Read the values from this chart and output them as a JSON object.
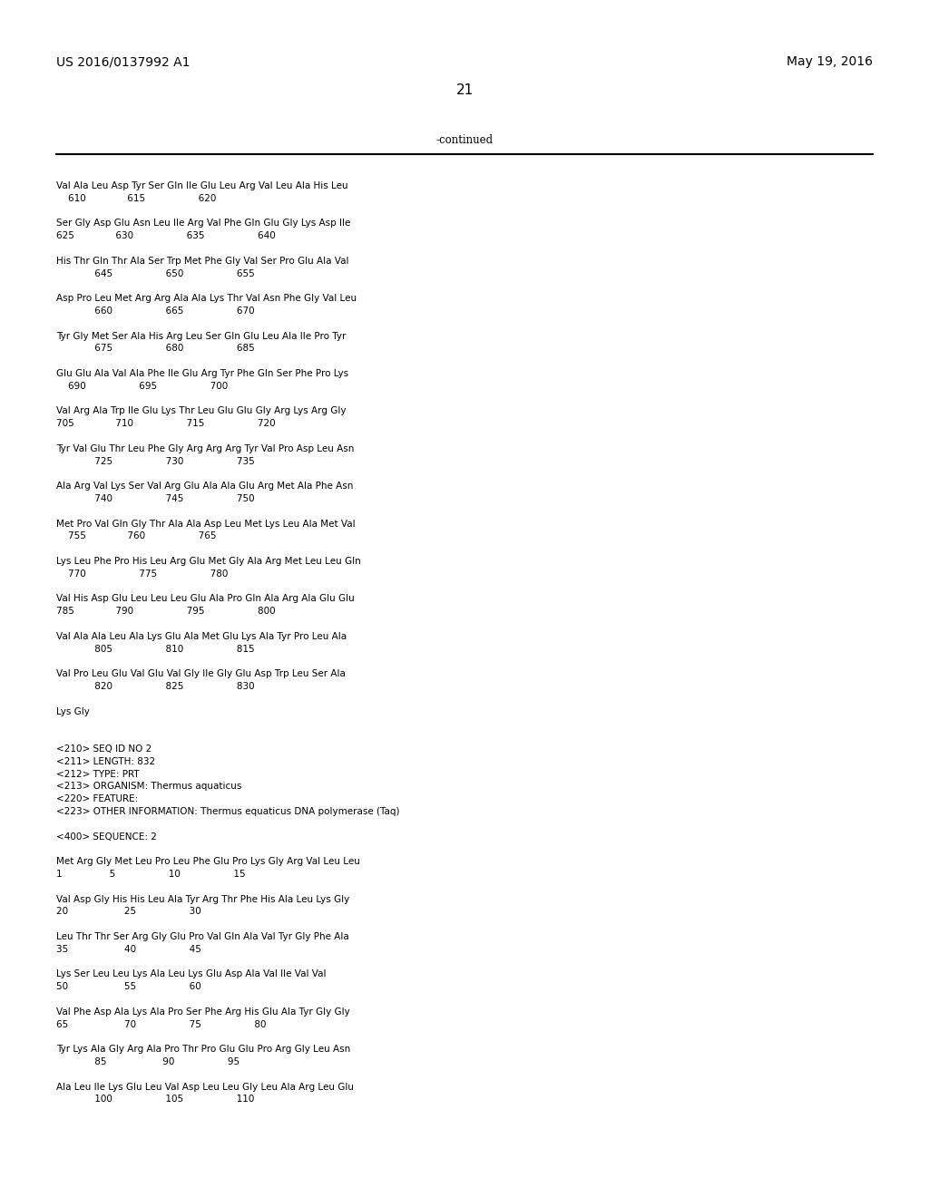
{
  "header_left": "US 2016/0137992 A1",
  "header_right": "May 19, 2016",
  "page_number": "21",
  "continued_text": "-continued",
  "background_color": "#ffffff",
  "text_color": "#000000",
  "content_lines": [
    "Val Ala Leu Asp Tyr Ser Gln Ile Glu Leu Arg Val Leu Ala His Leu",
    "    610              615                  620",
    "",
    "Ser Gly Asp Glu Asn Leu Ile Arg Val Phe Gln Glu Gly Lys Asp Ile",
    "625              630                  635                  640",
    "",
    "His Thr Gln Thr Ala Ser Trp Met Phe Gly Val Ser Pro Glu Ala Val",
    "             645                  650                  655",
    "",
    "Asp Pro Leu Met Arg Arg Ala Ala Lys Thr Val Asn Phe Gly Val Leu",
    "             660                  665                  670",
    "",
    "Tyr Gly Met Ser Ala His Arg Leu Ser Gln Glu Leu Ala Ile Pro Tyr",
    "             675                  680                  685",
    "",
    "Glu Glu Ala Val Ala Phe Ile Glu Arg Tyr Phe Gln Ser Phe Pro Lys",
    "    690                  695                  700",
    "",
    "Val Arg Ala Trp Ile Glu Lys Thr Leu Glu Glu Gly Arg Lys Arg Gly",
    "705              710                  715                  720",
    "",
    "Tyr Val Glu Thr Leu Phe Gly Arg Arg Arg Tyr Val Pro Asp Leu Asn",
    "             725                  730                  735",
    "",
    "Ala Arg Val Lys Ser Val Arg Glu Ala Ala Glu Arg Met Ala Phe Asn",
    "             740                  745                  750",
    "",
    "Met Pro Val Gln Gly Thr Ala Ala Asp Leu Met Lys Leu Ala Met Val",
    "    755              760                  765",
    "",
    "Lys Leu Phe Pro His Leu Arg Glu Met Gly Ala Arg Met Leu Leu Gln",
    "    770                  775                  780",
    "",
    "Val His Asp Glu Leu Leu Leu Glu Ala Pro Gln Ala Arg Ala Glu Glu",
    "785              790                  795                  800",
    "",
    "Val Ala Ala Leu Ala Lys Glu Ala Met Glu Lys Ala Tyr Pro Leu Ala",
    "             805                  810                  815",
    "",
    "Val Pro Leu Glu Val Glu Val Gly Ile Gly Glu Asp Trp Leu Ser Ala",
    "             820                  825                  830",
    "",
    "Lys Gly",
    "",
    "",
    "<210> SEQ ID NO 2",
    "<211> LENGTH: 832",
    "<212> TYPE: PRT",
    "<213> ORGANISM: Thermus aquaticus",
    "<220> FEATURE:",
    "<223> OTHER INFORMATION: Thermus equaticus DNA polymerase (Taq)",
    "",
    "<400> SEQUENCE: 2",
    "",
    "Met Arg Gly Met Leu Pro Leu Phe Glu Pro Lys Gly Arg Val Leu Leu",
    "1                5                  10                  15",
    "",
    "Val Asp Gly His His Leu Ala Tyr Arg Thr Phe His Ala Leu Lys Gly",
    "20                   25                  30",
    "",
    "Leu Thr Thr Ser Arg Gly Glu Pro Val Gln Ala Val Tyr Gly Phe Ala",
    "35                   40                  45",
    "",
    "Lys Ser Leu Leu Lys Ala Leu Lys Glu Asp Ala Val Ile Val Val",
    "50                   55                  60",
    "",
    "Val Phe Asp Ala Lys Ala Pro Ser Phe Arg His Glu Ala Tyr Gly Gly",
    "65                   70                  75                  80",
    "",
    "Tyr Lys Ala Gly Arg Ala Pro Thr Pro Glu Glu Pro Arg Gly Leu Asn",
    "             85                   90                  95",
    "",
    "Ala Leu Ile Lys Glu Leu Val Asp Leu Leu Gly Leu Ala Arg Leu Glu",
    "             100                  105                  110"
  ]
}
